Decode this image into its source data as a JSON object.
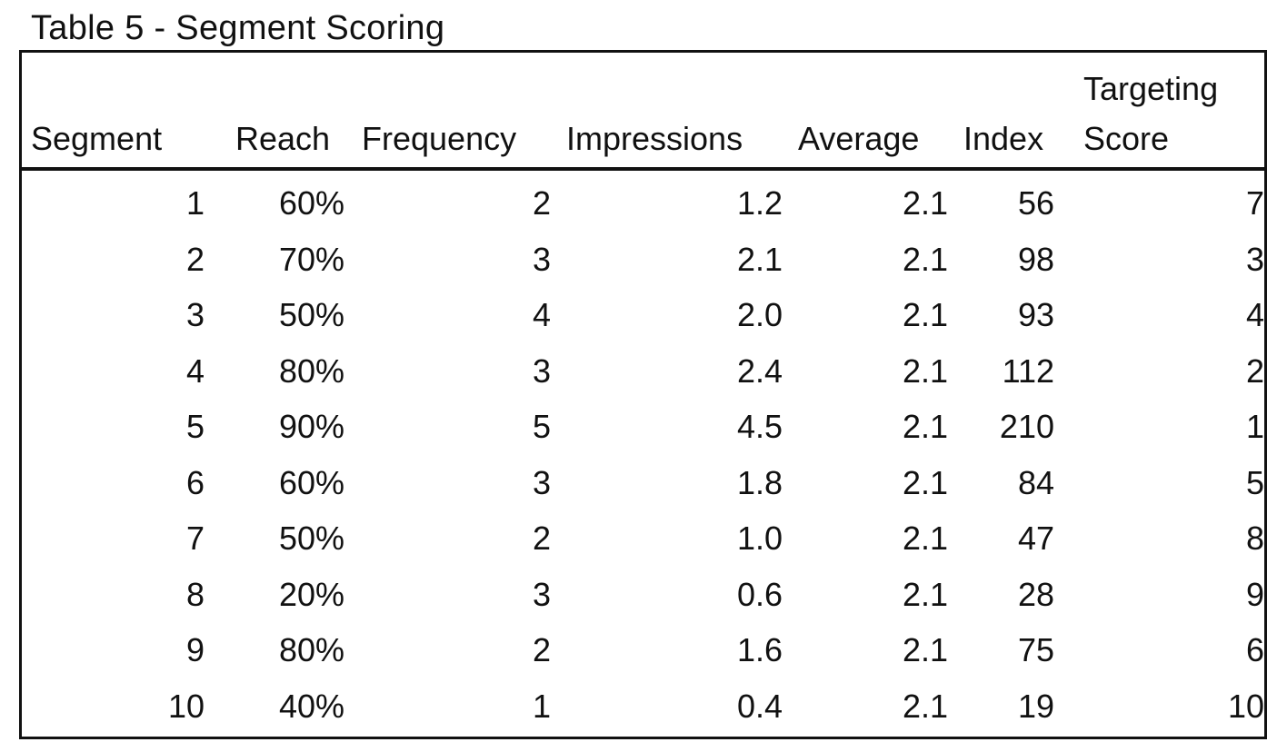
{
  "caption": "Table 5 - Segment Scoring",
  "columns": {
    "segment": "Segment",
    "reach": "Reach",
    "frequency": "Frequency",
    "impressions": "Impressions",
    "average": "Average",
    "index": "Index",
    "targeting_line1": "Targeting",
    "targeting_line2": "Score"
  },
  "rows": [
    {
      "segment": "1",
      "reach": "60%",
      "frequency": "2",
      "impressions": "1.2",
      "average": "2.1",
      "index": "56",
      "score": "7"
    },
    {
      "segment": "2",
      "reach": "70%",
      "frequency": "3",
      "impressions": "2.1",
      "average": "2.1",
      "index": "98",
      "score": "3"
    },
    {
      "segment": "3",
      "reach": "50%",
      "frequency": "4",
      "impressions": "2.0",
      "average": "2.1",
      "index": "93",
      "score": "4"
    },
    {
      "segment": "4",
      "reach": "80%",
      "frequency": "3",
      "impressions": "2.4",
      "average": "2.1",
      "index": "112",
      "score": "2"
    },
    {
      "segment": "5",
      "reach": "90%",
      "frequency": "5",
      "impressions": "4.5",
      "average": "2.1",
      "index": "210",
      "score": "1"
    },
    {
      "segment": "6",
      "reach": "60%",
      "frequency": "3",
      "impressions": "1.8",
      "average": "2.1",
      "index": "84",
      "score": "5"
    },
    {
      "segment": "7",
      "reach": "50%",
      "frequency": "2",
      "impressions": "1.0",
      "average": "2.1",
      "index": "47",
      "score": "8"
    },
    {
      "segment": "8",
      "reach": "20%",
      "frequency": "3",
      "impressions": "0.6",
      "average": "2.1",
      "index": "28",
      "score": "9"
    },
    {
      "segment": "9",
      "reach": "80%",
      "frequency": "2",
      "impressions": "1.6",
      "average": "2.1",
      "index": "75",
      "score": "6"
    },
    {
      "segment": "10",
      "reach": "40%",
      "frequency": "1",
      "impressions": "0.4",
      "average": "2.1",
      "index": "19",
      "score": "10"
    }
  ]
}
